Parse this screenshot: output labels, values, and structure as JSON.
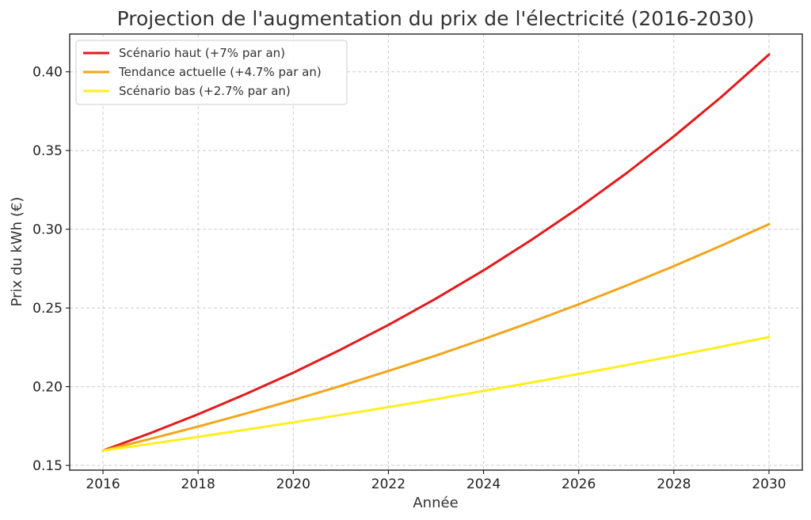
{
  "chart_data": {
    "type": "line",
    "title": "Projection de l'augmentation du prix de l'électricité (2016-2030)",
    "xlabel": "Année",
    "ylabel": "Prix du kWh (€)",
    "xlim": [
      2015.3,
      2030.7
    ],
    "ylim": [
      0.147,
      0.424
    ],
    "x_ticks": [
      2016,
      2018,
      2020,
      2022,
      2024,
      2026,
      2028,
      2030
    ],
    "x_tick_labels": [
      "2016",
      "2018",
      "2020",
      "2022",
      "2024",
      "2026",
      "2028",
      "2030"
    ],
    "y_ticks": [
      0.15,
      0.2,
      0.25,
      0.3,
      0.35,
      0.4
    ],
    "y_tick_labels": [
      "0.15",
      "0.20",
      "0.25",
      "0.30",
      "0.35",
      "0.40"
    ],
    "grid": true,
    "legend_position": "top-left",
    "x": [
      2016,
      2017,
      2018,
      2019,
      2020,
      2021,
      2022,
      2023,
      2024,
      2025,
      2026,
      2027,
      2028,
      2029,
      2030
    ],
    "series": [
      {
        "name": "Scénario haut (+7% par an)",
        "color": "#e31a1c",
        "values": [
          0.1594,
          0.1706,
          0.1825,
          0.1953,
          0.2089,
          0.2236,
          0.2392,
          0.256,
          0.2739,
          0.2931,
          0.3136,
          0.3355,
          0.359,
          0.3841,
          0.411
        ]
      },
      {
        "name": "Tendance actuelle (+4.7% par an)",
        "color": "#f2a51a",
        "values": [
          0.1594,
          0.1669,
          0.1747,
          0.1829,
          0.1915,
          0.2005,
          0.21,
          0.2198,
          0.2302,
          0.241,
          0.2523,
          0.2642,
          0.2766,
          0.2896,
          0.3032
        ]
      },
      {
        "name": "Scénario bas (+2.7% par an)",
        "color": "#ffee1f",
        "values": [
          0.1594,
          0.1637,
          0.1681,
          0.1727,
          0.1773,
          0.1821,
          0.187,
          0.1921,
          0.1973,
          0.2026,
          0.2081,
          0.2137,
          0.2195,
          0.2254,
          0.2315
        ]
      }
    ]
  }
}
